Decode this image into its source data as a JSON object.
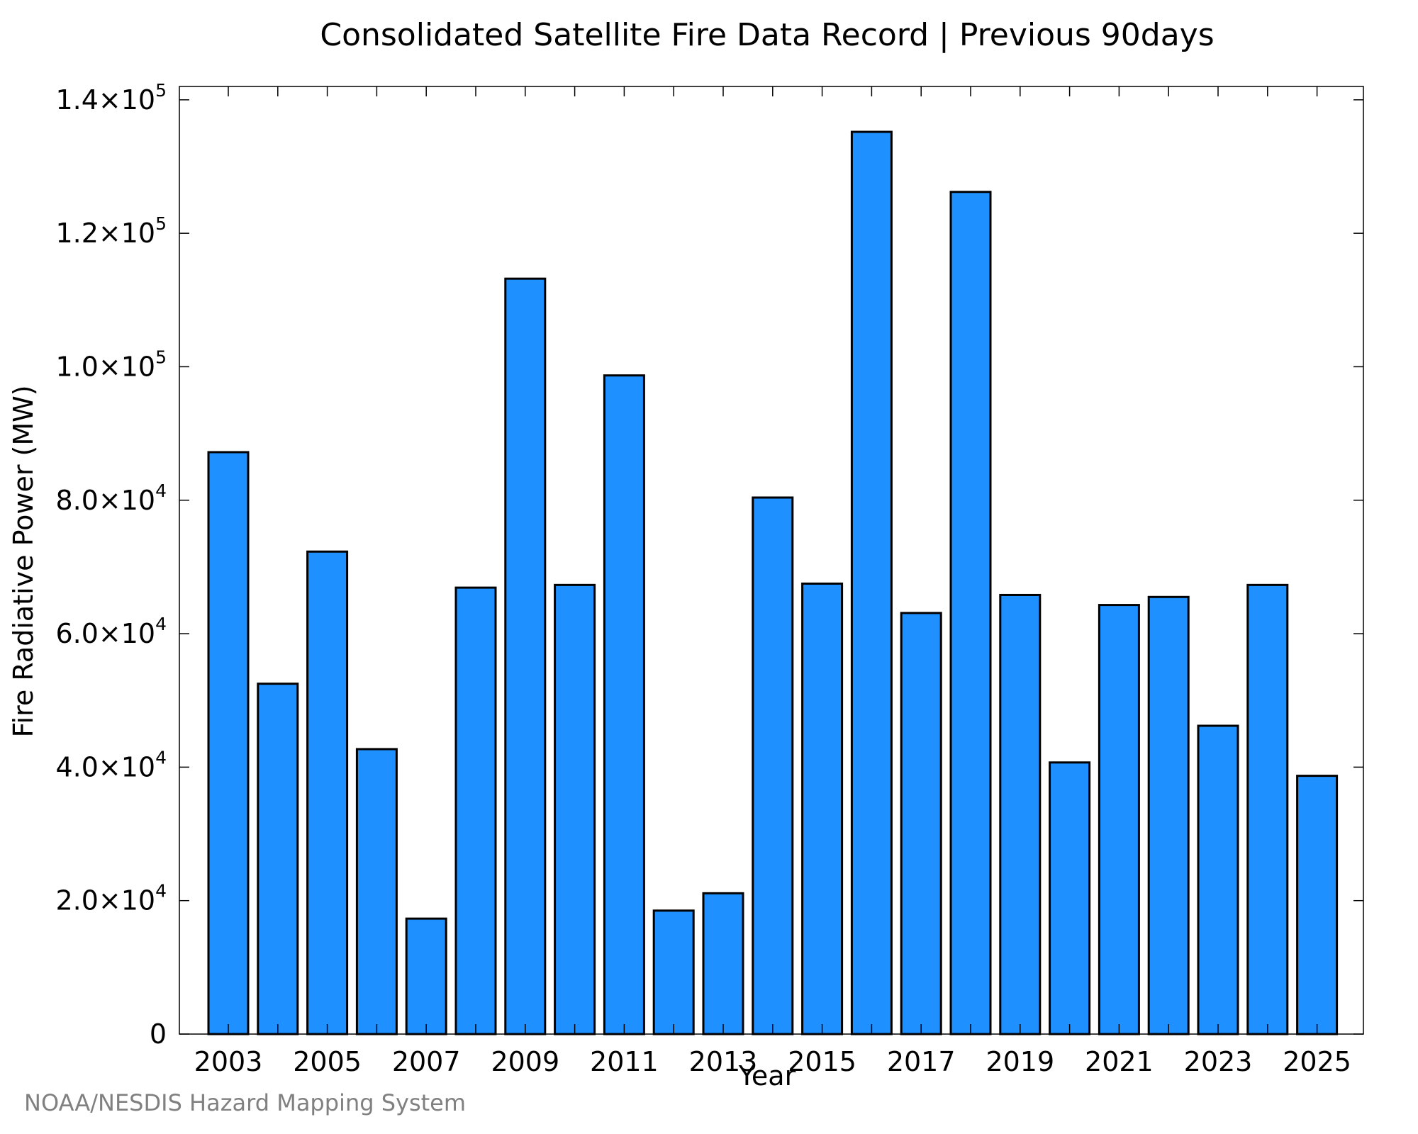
{
  "source": "NOAA/NESDIS Hazard Mapping System",
  "chart_data": {
    "type": "bar",
    "title": "Consolidated Satellite Fire Data Record | Previous 90days",
    "xlabel": "Year",
    "ylabel": "Fire Radiative Power (MW)",
    "ylim": [
      0,
      142000
    ],
    "yticks": [
      {
        "value": 0,
        "mantissa": "0",
        "exp": ""
      },
      {
        "value": 20000,
        "mantissa": "2.0×10",
        "exp": "4"
      },
      {
        "value": 40000,
        "mantissa": "4.0×10",
        "exp": "4"
      },
      {
        "value": 60000,
        "mantissa": "6.0×10",
        "exp": "4"
      },
      {
        "value": 80000,
        "mantissa": "8.0×10",
        "exp": "4"
      },
      {
        "value": 100000,
        "mantissa": "1.0×10",
        "exp": "5"
      },
      {
        "value": 120000,
        "mantissa": "1.2×10",
        "exp": "5"
      },
      {
        "value": 140000,
        "mantissa": "1.4×10",
        "exp": "5"
      }
    ],
    "xtick_labels": [
      "2003",
      "2005",
      "2007",
      "2009",
      "2011",
      "2013",
      "2015",
      "2017",
      "2019",
      "2021",
      "2023",
      "2025"
    ],
    "categories": [
      "2003",
      "2004",
      "2005",
      "2006",
      "2007",
      "2008",
      "2009",
      "2010",
      "2011",
      "2012",
      "2013",
      "2014",
      "2015",
      "2016",
      "2017",
      "2018",
      "2019",
      "2020",
      "2021",
      "2022",
      "2023",
      "2024",
      "2025"
    ],
    "values": [
      87200,
      52500,
      72300,
      42700,
      17300,
      66900,
      113200,
      67300,
      98700,
      18500,
      21100,
      80400,
      67500,
      135200,
      63100,
      126200,
      65800,
      40700,
      64300,
      65500,
      46200,
      67300,
      38700
    ],
    "grid": false,
    "bar_color": "#1e90ff"
  }
}
